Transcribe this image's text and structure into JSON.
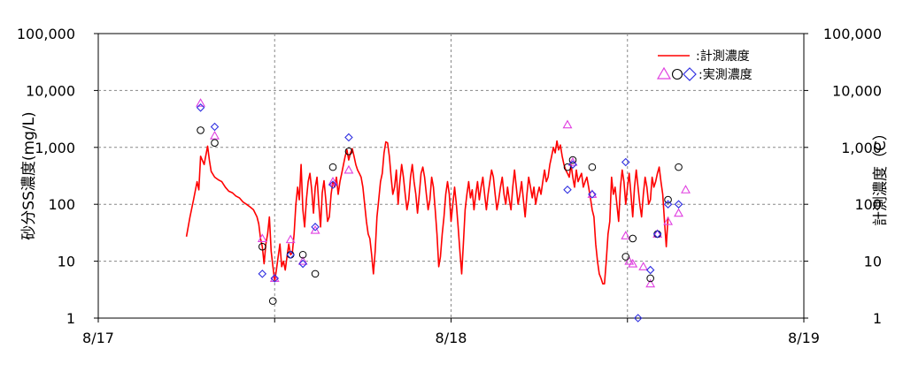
{
  "chart_data": {
    "type": "line",
    "title": "",
    "ylabel_left": "砂分SS濃度(mg/L)",
    "ylabel_right": "計測濃度（C）",
    "y_scale": "log",
    "ylim": [
      1,
      100000
    ],
    "y_ticks": [
      1,
      10,
      100,
      1000,
      10000,
      100000
    ],
    "y_tick_labels": [
      "1",
      "10",
      "100",
      "1,000",
      "10,000",
      "100,000"
    ],
    "x_tick_labels": [
      "8/17",
      "8/18",
      "8/19"
    ],
    "xlim_days": [
      0,
      2
    ],
    "grid": "dashed gray gridlines at each y decade and each 12 hours",
    "legend": {
      "placement": "top-right",
      "line_label": ":計測濃度",
      "markers_label": ":実測濃度"
    },
    "colors": {
      "line": "#ff0000",
      "triangle": "#e040e0",
      "circle": "#000000",
      "diamond": "#3030e0"
    },
    "series": [
      {
        "name": ":計測濃度",
        "kind": "line",
        "points": [
          [
            0.25,
            27
          ],
          [
            0.26,
            60
          ],
          [
            0.27,
            120
          ],
          [
            0.28,
            250
          ],
          [
            0.285,
            180
          ],
          [
            0.29,
            700
          ],
          [
            0.3,
            500
          ],
          [
            0.31,
            1050
          ],
          [
            0.315,
            600
          ],
          [
            0.32,
            380
          ],
          [
            0.33,
            300
          ],
          [
            0.34,
            270
          ],
          [
            0.35,
            250
          ],
          [
            0.36,
            200
          ],
          [
            0.37,
            170
          ],
          [
            0.38,
            160
          ],
          [
            0.39,
            140
          ],
          [
            0.4,
            130
          ],
          [
            0.41,
            110
          ],
          [
            0.42,
            100
          ],
          [
            0.43,
            90
          ],
          [
            0.44,
            80
          ],
          [
            0.45,
            60
          ],
          [
            0.455,
            45
          ],
          [
            0.46,
            25
          ],
          [
            0.465,
            18
          ],
          [
            0.47,
            9
          ],
          [
            0.475,
            20
          ],
          [
            0.48,
            30
          ],
          [
            0.485,
            60
          ],
          [
            0.49,
            15
          ],
          [
            0.495,
            8
          ],
          [
            0.5,
            4.5
          ],
          [
            0.505,
            7
          ],
          [
            0.51,
            12
          ],
          [
            0.515,
            20
          ],
          [
            0.52,
            8
          ],
          [
            0.525,
            10
          ],
          [
            0.53,
            7
          ],
          [
            0.535,
            12
          ],
          [
            0.54,
            20
          ],
          [
            0.545,
            13
          ],
          [
            0.55,
            14
          ],
          [
            0.555,
            30
          ],
          [
            0.56,
            100
          ],
          [
            0.565,
            200
          ],
          [
            0.57,
            120
          ],
          [
            0.575,
            500
          ],
          [
            0.58,
            80
          ],
          [
            0.585,
            40
          ],
          [
            0.59,
            120
          ],
          [
            0.595,
            250
          ],
          [
            0.6,
            350
          ],
          [
            0.605,
            180
          ],
          [
            0.61,
            70
          ],
          [
            0.615,
            200
          ],
          [
            0.62,
            300
          ],
          [
            0.625,
            100
          ],
          [
            0.63,
            40
          ],
          [
            0.635,
            160
          ],
          [
            0.64,
            260
          ],
          [
            0.645,
            120
          ],
          [
            0.65,
            50
          ],
          [
            0.655,
            60
          ],
          [
            0.66,
            150
          ],
          [
            0.665,
            250
          ],
          [
            0.67,
            200
          ],
          [
            0.675,
            300
          ],
          [
            0.68,
            150
          ],
          [
            0.685,
            250
          ],
          [
            0.69,
            350
          ],
          [
            0.695,
            500
          ],
          [
            0.7,
            700
          ],
          [
            0.705,
            900
          ],
          [
            0.71,
            600
          ],
          [
            0.715,
            800
          ],
          [
            0.72,
            950
          ],
          [
            0.725,
            700
          ],
          [
            0.73,
            500
          ],
          [
            0.735,
            400
          ],
          [
            0.74,
            350
          ],
          [
            0.745,
            300
          ],
          [
            0.75,
            200
          ],
          [
            0.755,
            100
          ],
          [
            0.76,
            50
          ],
          [
            0.765,
            30
          ],
          [
            0.77,
            25
          ],
          [
            0.775,
            13
          ],
          [
            0.78,
            6
          ],
          [
            0.785,
            15
          ],
          [
            0.79,
            60
          ],
          [
            0.795,
            120
          ],
          [
            0.8,
            250
          ],
          [
            0.805,
            350
          ],
          [
            0.81,
            800
          ],
          [
            0.815,
            1250
          ],
          [
            0.82,
            1200
          ],
          [
            0.825,
            700
          ],
          [
            0.83,
            300
          ],
          [
            0.835,
            150
          ],
          [
            0.84,
            200
          ],
          [
            0.845,
            400
          ],
          [
            0.85,
            100
          ],
          [
            0.855,
            250
          ],
          [
            0.86,
            500
          ],
          [
            0.865,
            300
          ],
          [
            0.87,
            150
          ],
          [
            0.875,
            80
          ],
          [
            0.88,
            120
          ],
          [
            0.885,
            300
          ],
          [
            0.89,
            500
          ],
          [
            0.895,
            250
          ],
          [
            0.9,
            150
          ],
          [
            0.905,
            70
          ],
          [
            0.91,
            150
          ],
          [
            0.915,
            350
          ],
          [
            0.92,
            450
          ],
          [
            0.925,
            300
          ],
          [
            0.93,
            150
          ],
          [
            0.935,
            80
          ],
          [
            0.94,
            120
          ],
          [
            0.945,
            300
          ],
          [
            0.95,
            200
          ],
          [
            0.955,
            80
          ],
          [
            0.96,
            30
          ],
          [
            0.965,
            8
          ],
          [
            0.97,
            12
          ],
          [
            0.975,
            30
          ],
          [
            0.98,
            60
          ],
          [
            0.985,
            150
          ],
          [
            0.99,
            250
          ],
          [
            0.995,
            150
          ],
          [
            1.0,
            50
          ],
          [
            1.005,
            100
          ],
          [
            1.01,
            200
          ],
          [
            1.015,
            100
          ],
          [
            1.02,
            40
          ],
          [
            1.025,
            15
          ],
          [
            1.03,
            6
          ],
          [
            1.035,
            20
          ],
          [
            1.04,
            80
          ],
          [
            1.045,
            150
          ],
          [
            1.05,
            250
          ],
          [
            1.055,
            130
          ],
          [
            1.06,
            180
          ],
          [
            1.065,
            80
          ],
          [
            1.07,
            150
          ],
          [
            1.075,
            250
          ],
          [
            1.08,
            120
          ],
          [
            1.085,
            200
          ],
          [
            1.09,
            300
          ],
          [
            1.095,
            150
          ],
          [
            1.1,
            80
          ],
          [
            1.105,
            150
          ],
          [
            1.11,
            250
          ],
          [
            1.115,
            400
          ],
          [
            1.12,
            300
          ],
          [
            1.125,
            150
          ],
          [
            1.13,
            80
          ],
          [
            1.135,
            120
          ],
          [
            1.14,
            200
          ],
          [
            1.145,
            300
          ],
          [
            1.15,
            150
          ],
          [
            1.155,
            100
          ],
          [
            1.16,
            200
          ],
          [
            1.165,
            120
          ],
          [
            1.17,
            80
          ],
          [
            1.175,
            200
          ],
          [
            1.18,
            400
          ],
          [
            1.185,
            200
          ],
          [
            1.19,
            100
          ],
          [
            1.195,
            150
          ],
          [
            1.2,
            250
          ],
          [
            1.205,
            120
          ],
          [
            1.21,
            60
          ],
          [
            1.215,
            150
          ],
          [
            1.22,
            300
          ],
          [
            1.225,
            200
          ],
          [
            1.23,
            130
          ],
          [
            1.235,
            200
          ],
          [
            1.24,
            100
          ],
          [
            1.245,
            150
          ],
          [
            1.25,
            200
          ],
          [
            1.255,
            150
          ],
          [
            1.26,
            250
          ],
          [
            1.265,
            400
          ],
          [
            1.27,
            250
          ],
          [
            1.275,
            300
          ],
          [
            1.28,
            500
          ],
          [
            1.285,
            700
          ],
          [
            1.29,
            1000
          ],
          [
            1.295,
            800
          ],
          [
            1.3,
            1300
          ],
          [
            1.305,
            900
          ],
          [
            1.31,
            1100
          ],
          [
            1.315,
            700
          ],
          [
            1.32,
            500
          ],
          [
            1.325,
            400
          ],
          [
            1.33,
            350
          ],
          [
            1.335,
            300
          ],
          [
            1.34,
            500
          ],
          [
            1.345,
            300
          ],
          [
            1.35,
            200
          ],
          [
            1.355,
            400
          ],
          [
            1.36,
            250
          ],
          [
            1.365,
            300
          ],
          [
            1.37,
            350
          ],
          [
            1.375,
            200
          ],
          [
            1.38,
            250
          ],
          [
            1.385,
            300
          ],
          [
            1.39,
            200
          ],
          [
            1.395,
            130
          ],
          [
            1.4,
            80
          ],
          [
            1.405,
            60
          ],
          [
            1.41,
            20
          ],
          [
            1.415,
            10
          ],
          [
            1.42,
            6
          ],
          [
            1.425,
            5
          ],
          [
            1.43,
            4
          ],
          [
            1.435,
            4
          ],
          [
            1.44,
            10
          ],
          [
            1.445,
            30
          ],
          [
            1.45,
            50
          ],
          [
            1.455,
            300
          ],
          [
            1.46,
            150
          ],
          [
            1.465,
            200
          ],
          [
            1.47,
            100
          ],
          [
            1.475,
            50
          ],
          [
            1.48,
            200
          ],
          [
            1.485,
            400
          ],
          [
            1.49,
            250
          ],
          [
            1.495,
            100
          ],
          [
            1.5,
            200
          ],
          [
            1.505,
            350
          ],
          [
            1.51,
            150
          ],
          [
            1.515,
            60
          ],
          [
            1.52,
            200
          ],
          [
            1.525,
            400
          ],
          [
            1.53,
            200
          ],
          [
            1.535,
            100
          ],
          [
            1.54,
            60
          ],
          [
            1.545,
            150
          ],
          [
            1.55,
            300
          ],
          [
            1.555,
            200
          ],
          [
            1.56,
            100
          ],
          [
            1.565,
            120
          ],
          [
            1.57,
            300
          ],
          [
            1.575,
            200
          ],
          [
            1.58,
            250
          ],
          [
            1.585,
            350
          ],
          [
            1.59,
            450
          ],
          [
            1.595,
            250
          ],
          [
            1.6,
            150
          ],
          [
            1.605,
            50
          ],
          [
            1.61,
            18
          ],
          [
            1.615,
            60
          ]
        ]
      },
      {
        "name": ":実測濃度",
        "kind": "triangle",
        "points": [
          [
            0.29,
            6000
          ],
          [
            0.33,
            1600
          ],
          [
            0.465,
            25
          ],
          [
            0.5,
            5
          ],
          [
            0.545,
            24
          ],
          [
            0.58,
            10
          ],
          [
            0.615,
            35
          ],
          [
            0.665,
            250
          ],
          [
            0.71,
            400
          ],
          [
            1.33,
            2500
          ],
          [
            1.345,
            550
          ],
          [
            1.4,
            150
          ],
          [
            1.495,
            28
          ],
          [
            1.505,
            10
          ],
          [
            1.515,
            9
          ],
          [
            1.545,
            8
          ],
          [
            1.565,
            4
          ],
          [
            1.585,
            30
          ],
          [
            1.615,
            50
          ],
          [
            1.645,
            70
          ],
          [
            1.665,
            180
          ]
        ]
      },
      {
        "name": ":実測濃度",
        "kind": "circle",
        "points": [
          [
            0.29,
            2000
          ],
          [
            0.33,
            1200
          ],
          [
            0.465,
            18
          ],
          [
            0.495,
            2
          ],
          [
            0.545,
            13
          ],
          [
            0.58,
            13
          ],
          [
            0.615,
            6
          ],
          [
            0.665,
            450
          ],
          [
            0.71,
            850
          ],
          [
            1.33,
            450
          ],
          [
            1.345,
            600
          ],
          [
            1.4,
            450
          ],
          [
            1.495,
            12
          ],
          [
            1.515,
            25
          ],
          [
            1.565,
            5
          ],
          [
            1.585,
            30
          ],
          [
            1.615,
            120
          ],
          [
            1.645,
            450
          ]
        ]
      },
      {
        "name": ":実測濃度",
        "kind": "diamond",
        "points": [
          [
            0.29,
            5000
          ],
          [
            0.33,
            2300
          ],
          [
            0.465,
            6
          ],
          [
            0.5,
            5
          ],
          [
            0.545,
            13
          ],
          [
            0.58,
            9
          ],
          [
            0.615,
            40
          ],
          [
            0.665,
            220
          ],
          [
            0.71,
            1500
          ],
          [
            1.33,
            180
          ],
          [
            1.345,
            500
          ],
          [
            1.4,
            150
          ],
          [
            1.495,
            550
          ],
          [
            1.53,
            1
          ],
          [
            1.565,
            7
          ],
          [
            1.585,
            30
          ],
          [
            1.615,
            100
          ],
          [
            1.645,
            100
          ]
        ]
      }
    ]
  }
}
